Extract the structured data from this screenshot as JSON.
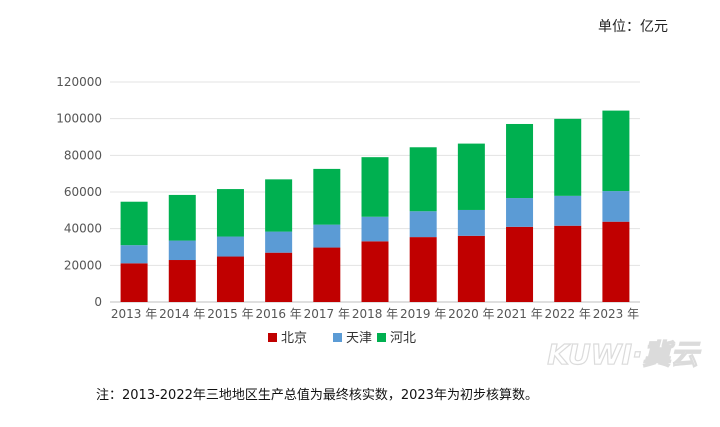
{
  "unit": "单位：亿元",
  "note": "注：2013-2022年三地地区生产总值为最终核实数，2023年为初步核算数。",
  "watermark": "KUWI·冀云",
  "chart_data": {
    "type": "bar",
    "stacked": true,
    "categories": [
      "2013 年",
      "2014 年",
      "2015 年",
      "2016 年",
      "2017 年",
      "2018 年",
      "2019 年",
      "2020 年",
      "2021 年",
      "2022 年",
      "2023 年"
    ],
    "series": [
      {
        "name": "北京",
        "color": "#c00000",
        "values": [
          21100,
          22900,
          24800,
          26900,
          29700,
          33100,
          35400,
          36100,
          41000,
          41600,
          43800
        ]
      },
      {
        "name": "天津",
        "color": "#5b9bd5",
        "values": [
          9900,
          10600,
          10900,
          11500,
          12500,
          13400,
          14100,
          14100,
          15700,
          16300,
          16700
        ]
      },
      {
        "name": "河北",
        "color": "#00b050",
        "values": [
          23700,
          24900,
          25900,
          28500,
          30400,
          32500,
          34900,
          36200,
          40400,
          42000,
          43900
        ]
      }
    ],
    "ylim": [
      0,
      120000
    ],
    "yticks": [
      0,
      20000,
      40000,
      60000,
      80000,
      100000,
      120000
    ],
    "grid": true,
    "legend_position": "bottom"
  }
}
